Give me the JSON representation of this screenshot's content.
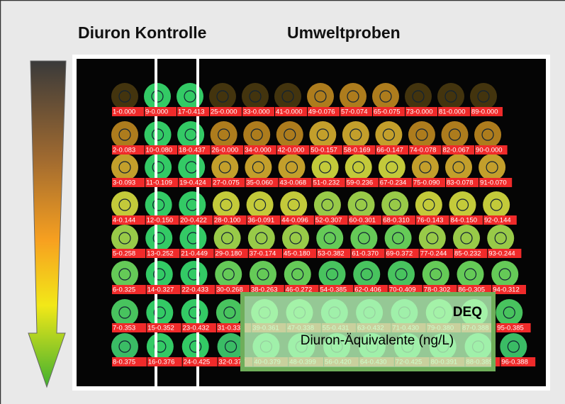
{
  "titles": {
    "control": "Diuron Kontrolle",
    "samples": "Umweltproben"
  },
  "legend": {
    "title": "DEQ",
    "subtitle": "Diuron-Äquivalente (ng/L)"
  },
  "labels": [
    [
      "1-0.000",
      "9-0.000",
      "17-0.413",
      "25-0.000",
      "33-0.000",
      "41-0.000",
      "49-0.076",
      "57-0.074",
      "65-0.075",
      "73-0.000",
      "81-0.000",
      "89-0.000"
    ],
    [
      "2-0.083",
      "10-0.080",
      "18-0.437",
      "26-0.000",
      "34-0.000",
      "42-0.000",
      "50-0.157",
      "58-0.169",
      "66-0.147",
      "74-0.078",
      "82-0.067",
      "90-0.000"
    ],
    [
      "3-0.093",
      "11-0.109",
      "19-0.424",
      "27-0.075",
      "35-0.060",
      "43-0.068",
      "51-0.232",
      "59-0.236",
      "67-0.234",
      "75-0.090",
      "83-0.078",
      "91-0.070"
    ],
    [
      "4-0.144",
      "12-0.150",
      "20-0.422",
      "28-0.100",
      "36-0.091",
      "44-0.096",
      "52-0.307",
      "60-0.301",
      "68-0.310",
      "76-0.143",
      "84-0.150",
      "92-0.144"
    ],
    [
      "5-0.258",
      "13-0.252",
      "21-0.449",
      "29-0.180",
      "37-0.174",
      "45-0.180",
      "53-0.382",
      "61-0.370",
      "69-0.372",
      "77-0.244",
      "85-0.232",
      "93-0.244"
    ],
    [
      "6-0.325",
      "14-0.327",
      "22-0.433",
      "30-0.268",
      "38-0.263",
      "46-0.272",
      "54-0.385",
      "62-0.406",
      "70-0.409",
      "78-0.302",
      "86-0.305",
      "94-0.312"
    ],
    [
      "7-0.353",
      "15-0.352",
      "23-0.432",
      "31-0.335",
      "39-0.361",
      "47-0.338",
      "55-0.431",
      "63-0.432",
      "71-0.430",
      "79-0.380",
      "87-0.388",
      "95-0.385"
    ],
    [
      "8-0.375",
      "16-0.376",
      "24-0.425",
      "32-0.377",
      "40-0.379",
      "48-0.399",
      "56-0.420",
      "64-0.430",
      "72-0.425",
      "80-0.391",
      "88-0.389",
      "96-0.388"
    ]
  ]
}
